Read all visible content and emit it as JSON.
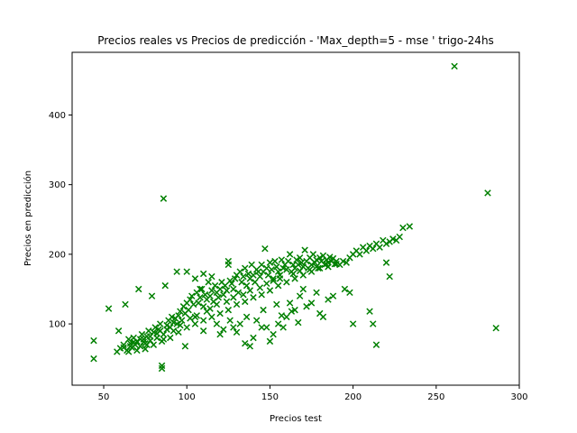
{
  "chart_data": {
    "type": "scatter",
    "title": "Precios reales vs Precios de predicción - 'Max_depth=5 - mse ' trigo-24hs",
    "xlabel": "Precios test",
    "ylabel": "Precios en predicción",
    "xlim": [
      31,
      300
    ],
    "ylim": [
      12,
      490
    ],
    "xticks": [
      "50",
      "100",
      "150",
      "200",
      "250",
      "300"
    ],
    "yticks": [
      "100",
      "200",
      "300",
      "400"
    ],
    "marker": "x",
    "color": "#008000",
    "grid": false,
    "series": [
      {
        "points": [
          [
            44,
            76
          ],
          [
            44,
            50
          ],
          [
            53,
            122
          ],
          [
            58,
            60
          ],
          [
            59,
            90
          ],
          [
            60,
            65
          ],
          [
            62,
            70
          ],
          [
            63,
            128
          ],
          [
            64,
            62
          ],
          [
            65,
            78
          ],
          [
            66,
            72
          ],
          [
            67,
            66
          ],
          [
            68,
            80
          ],
          [
            69,
            70
          ],
          [
            70,
            75
          ],
          [
            71,
            150
          ],
          [
            72,
            68
          ],
          [
            73,
            85
          ],
          [
            74,
            78
          ],
          [
            75,
            72
          ],
          [
            76,
            82
          ],
          [
            77,
            90
          ],
          [
            78,
            76
          ],
          [
            79,
            140
          ],
          [
            80,
            88
          ],
          [
            81,
            95
          ],
          [
            82,
            80
          ],
          [
            83,
            92
          ],
          [
            84,
            100
          ],
          [
            85,
            40
          ],
          [
            85,
            36
          ],
          [
            86,
            280
          ],
          [
            86,
            85
          ],
          [
            87,
            155
          ],
          [
            88,
            98
          ],
          [
            89,
            105
          ],
          [
            90,
            95
          ],
          [
            91,
            110
          ],
          [
            92,
            102
          ],
          [
            93,
            108
          ],
          [
            94,
            175
          ],
          [
            95,
            112
          ],
          [
            96,
            118
          ],
          [
            97,
            105
          ],
          [
            98,
            125
          ],
          [
            99,
            115
          ],
          [
            100,
            130
          ],
          [
            101,
            120
          ],
          [
            102,
            135
          ],
          [
            103,
            140
          ],
          [
            104,
            128
          ],
          [
            105,
            110
          ],
          [
            106,
            145
          ],
          [
            107,
            130
          ],
          [
            108,
            138
          ],
          [
            109,
            150
          ],
          [
            110,
            125
          ],
          [
            111,
            142
          ],
          [
            112,
            135
          ],
          [
            113,
            160
          ],
          [
            114,
            140
          ],
          [
            115,
            148
          ],
          [
            116,
            132
          ],
          [
            117,
            155
          ],
          [
            118,
            145
          ],
          [
            119,
            138
          ],
          [
            120,
            150
          ],
          [
            121,
            160
          ],
          [
            122,
            142
          ],
          [
            123,
            155
          ],
          [
            124,
            148
          ],
          [
            125,
            190
          ],
          [
            126,
            162
          ],
          [
            127,
            158
          ],
          [
            128,
            150
          ],
          [
            129,
            165
          ],
          [
            130,
            170
          ],
          [
            131,
            145
          ],
          [
            132,
            175
          ],
          [
            133,
            160
          ],
          [
            134,
            168
          ],
          [
            135,
            180
          ],
          [
            136,
            155
          ],
          [
            137,
            172
          ],
          [
            138,
            165
          ],
          [
            139,
            185
          ],
          [
            140,
            170
          ],
          [
            141,
            160
          ],
          [
            142,
            178
          ],
          [
            143,
            175
          ],
          [
            144,
            168
          ],
          [
            145,
            185
          ],
          [
            146,
            175
          ],
          [
            147,
            208
          ],
          [
            148,
            180
          ],
          [
            149,
            170
          ],
          [
            150,
            188
          ],
          [
            151,
            178
          ],
          [
            152,
            165
          ],
          [
            153,
            190
          ],
          [
            154,
            182
          ],
          [
            155,
            175
          ],
          [
            156,
            170
          ],
          [
            157,
            192
          ],
          [
            158,
            180
          ],
          [
            159,
            185
          ],
          [
            160,
            178
          ],
          [
            161,
            190
          ],
          [
            162,
            200
          ],
          [
            163,
            175
          ],
          [
            164,
            185
          ],
          [
            165,
            180
          ],
          [
            166,
            192
          ],
          [
            167,
            185
          ],
          [
            168,
            195
          ],
          [
            169,
            188
          ],
          [
            170,
            182
          ],
          [
            171,
            206
          ],
          [
            172,
            190
          ],
          [
            173,
            180
          ],
          [
            174,
            195
          ],
          [
            175,
            185
          ],
          [
            176,
            200
          ],
          [
            177,
            188
          ],
          [
            178,
            192
          ],
          [
            179,
            180
          ],
          [
            180,
            195
          ],
          [
            181,
            190
          ],
          [
            182,
            198
          ],
          [
            183,
            185
          ],
          [
            184,
            192
          ],
          [
            185,
            188
          ],
          [
            186,
            196
          ],
          [
            187,
            190
          ],
          [
            188,
            194
          ],
          [
            189,
            186
          ],
          [
            190,
            190
          ],
          [
            192,
            185
          ],
          [
            194,
            190
          ],
          [
            196,
            188
          ],
          [
            198,
            195
          ],
          [
            200,
            200
          ],
          [
            202,
            205
          ],
          [
            204,
            200
          ],
          [
            206,
            210
          ],
          [
            208,
            205
          ],
          [
            210,
            212
          ],
          [
            212,
            208
          ],
          [
            214,
            215
          ],
          [
            216,
            210
          ],
          [
            218,
            220
          ],
          [
            220,
            215
          ],
          [
            222,
            218
          ],
          [
            224,
            222
          ],
          [
            226,
            220
          ],
          [
            228,
            225
          ],
          [
            230,
            238
          ],
          [
            234,
            240
          ],
          [
            195,
            150
          ],
          [
            198,
            145
          ],
          [
            200,
            100
          ],
          [
            210,
            118
          ],
          [
            212,
            100
          ],
          [
            214,
            70
          ],
          [
            220,
            188
          ],
          [
            222,
            168
          ],
          [
            99,
            68
          ],
          [
            110,
            90
          ],
          [
            120,
            85
          ],
          [
            128,
            95
          ],
          [
            135,
            72
          ],
          [
            138,
            68
          ],
          [
            140,
            80
          ],
          [
            145,
            95
          ],
          [
            150,
            75
          ],
          [
            152,
            85
          ],
          [
            155,
            100
          ],
          [
            158,
            95
          ],
          [
            160,
            110
          ],
          [
            162,
            130
          ],
          [
            165,
            120
          ],
          [
            168,
            140
          ],
          [
            170,
            150
          ],
          [
            172,
            125
          ],
          [
            175,
            130
          ],
          [
            178,
            145
          ],
          [
            180,
            115
          ],
          [
            185,
            135
          ],
          [
            188,
            140
          ],
          [
            182,
            110
          ],
          [
            100,
            175
          ],
          [
            105,
            165
          ],
          [
            110,
            172
          ],
          [
            115,
            168
          ],
          [
            125,
            185
          ],
          [
            108,
            150
          ],
          [
            112,
            118
          ],
          [
            118,
            100
          ],
          [
            122,
            92
          ],
          [
            126,
            105
          ],
          [
            130,
            88
          ],
          [
            132,
            100
          ],
          [
            136,
            110
          ],
          [
            142,
            105
          ],
          [
            146,
            120
          ],
          [
            148,
            95
          ],
          [
            154,
            128
          ],
          [
            157,
            112
          ],
          [
            163,
            118
          ],
          [
            167,
            102
          ],
          [
            261,
            470
          ],
          [
            281,
            288
          ],
          [
            286,
            94
          ],
          [
            65,
            60
          ],
          [
            70,
            62
          ],
          [
            75,
            64
          ],
          [
            80,
            70
          ],
          [
            85,
            75
          ],
          [
            90,
            80
          ],
          [
            95,
            88
          ],
          [
            100,
            95
          ],
          [
            105,
            100
          ],
          [
            110,
            105
          ],
          [
            115,
            110
          ],
          [
            120,
            115
          ],
          [
            125,
            120
          ],
          [
            130,
            128
          ],
          [
            135,
            132
          ],
          [
            140,
            138
          ],
          [
            145,
            142
          ],
          [
            150,
            148
          ],
          [
            155,
            155
          ],
          [
            160,
            160
          ],
          [
            165,
            165
          ],
          [
            170,
            170
          ],
          [
            175,
            175
          ],
          [
            180,
            180
          ],
          [
            185,
            182
          ],
          [
            190,
            186
          ],
          [
            68,
            74
          ],
          [
            72,
            78
          ],
          [
            76,
            70
          ],
          [
            82,
            86
          ],
          [
            88,
            92
          ],
          [
            92,
            90
          ],
          [
            96,
            98
          ],
          [
            102,
            108
          ],
          [
            106,
            112
          ],
          [
            114,
            122
          ],
          [
            118,
            128
          ],
          [
            124,
            132
          ],
          [
            128,
            138
          ],
          [
            134,
            142
          ],
          [
            138,
            148
          ],
          [
            144,
            152
          ],
          [
            148,
            158
          ],
          [
            152,
            162
          ],
          [
            156,
            165
          ],
          [
            164,
            172
          ],
          [
            168,
            176
          ],
          [
            174,
            178
          ],
          [
            178,
            182
          ],
          [
            184,
            186
          ],
          [
            62,
            66
          ],
          [
            66,
            68
          ],
          [
            74,
            74
          ],
          [
            78,
            82
          ],
          [
            84,
            90
          ],
          [
            86,
            78
          ],
          [
            94,
            100
          ]
        ]
      }
    ]
  }
}
